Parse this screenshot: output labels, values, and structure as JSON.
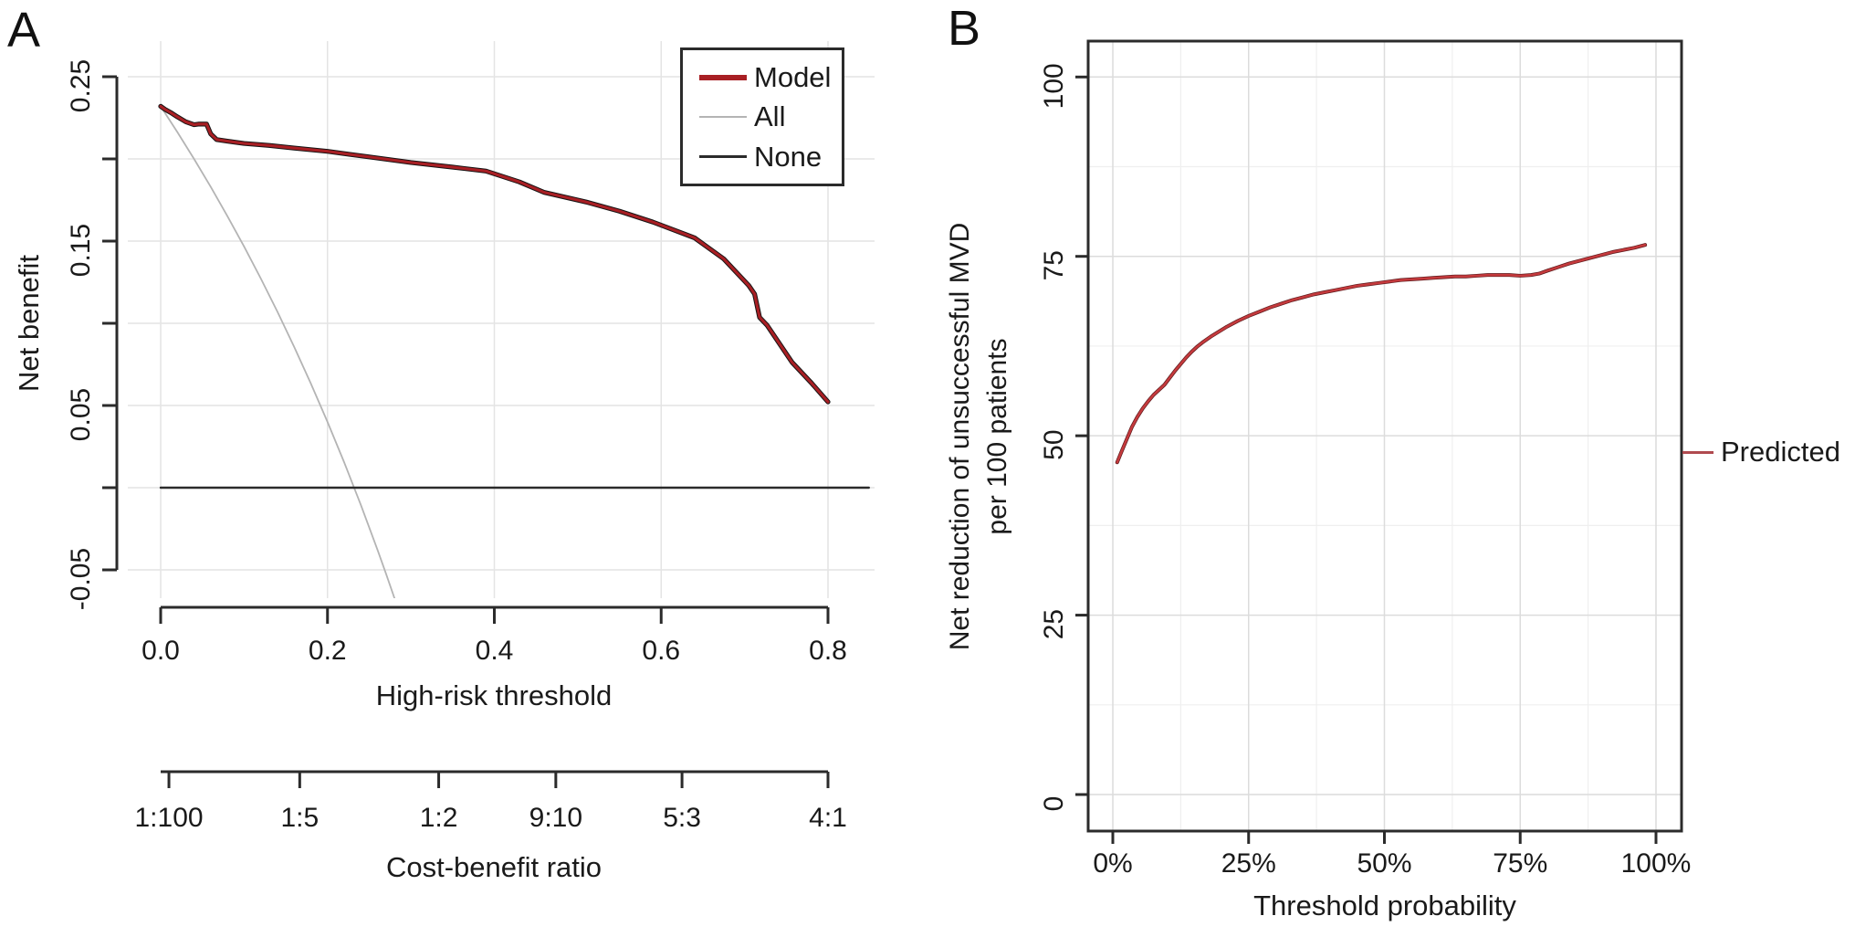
{
  "colors": {
    "model_red": "#a81f24",
    "model_under": "#141414",
    "all_gray": "#b4b4b4",
    "none_black": "#2b2b2b",
    "predicted_red": "#c53a3d",
    "predicted_under": "#5a191b",
    "legend_b_red": "#b04a4f",
    "grid_a": "#e4e4e4",
    "grid_b_major": "#dcdcdc",
    "grid_b_minor": "#efefef",
    "axis": "#2b2b2b",
    "text": "#1a1a1a"
  },
  "chart_data": [
    {
      "type": "line",
      "panel_label": "A",
      "xlabel": "High-risk threshold",
      "ylabel": "Net benefit",
      "xlim": [
        0,
        0.8
      ],
      "ylim": [
        -0.05,
        0.25
      ],
      "grid": "on",
      "legend_position": "top-right",
      "xticks": [
        {
          "v": 0.0,
          "label": "0.0"
        },
        {
          "v": 0.2,
          "label": "0.2"
        },
        {
          "v": 0.4,
          "label": "0.4"
        },
        {
          "v": 0.6,
          "label": "0.6"
        },
        {
          "v": 0.8,
          "label": "0.8"
        }
      ],
      "yticks": [
        {
          "v": 0.25,
          "label": "0.25"
        },
        {
          "v": 0.15,
          "label": "0.15"
        },
        {
          "v": 0.05,
          "label": "0.05"
        },
        {
          "v": -0.05,
          "label": "-0.05"
        }
      ],
      "yticks_minor": [
        0.2,
        0.1,
        0.0
      ],
      "secondary_xaxis": {
        "label": "Cost-benefit ratio",
        "ticks": [
          {
            "pos": 0.0099,
            "label": "1:100"
          },
          {
            "pos": 0.1667,
            "label": "1:5"
          },
          {
            "pos": 0.3333,
            "label": "1:2"
          },
          {
            "pos": 0.4737,
            "label": "9:10"
          },
          {
            "pos": 0.625,
            "label": "5:3"
          },
          {
            "pos": 0.8,
            "label": "4:1"
          }
        ]
      },
      "legend": {
        "entries": [
          {
            "name": "Model",
            "color": "#a81f24"
          },
          {
            "name": "All",
            "color": "#b4b4b4"
          },
          {
            "name": "None",
            "color": "#2b2b2b"
          }
        ]
      },
      "series": [
        {
          "name": "All",
          "color": "#b4b4b4",
          "points": [
            [
              0,
              0.232
            ],
            [
              0.02,
              0.2163
            ],
            [
              0.04,
              0.2
            ],
            [
              0.06,
              0.183
            ],
            [
              0.08,
              0.1652
            ],
            [
              0.1,
              0.1467
            ],
            [
              0.12,
              0.1273
            ],
            [
              0.14,
              0.107
            ],
            [
              0.16,
              0.0857
            ],
            [
              0.18,
              0.0634
            ],
            [
              0.2,
              0.04
            ],
            [
              0.22,
              0.0154
            ],
            [
              0.24,
              -0.0105
            ],
            [
              0.26,
              -0.0379
            ],
            [
              0.27,
              -0.0521
            ],
            [
              0.28,
              -0.0668
            ],
            [
              0.284,
              -0.0728
            ]
          ]
        },
        {
          "name": "None",
          "color": "#2b2b2b",
          "points": [
            [
              0,
              0
            ],
            [
              0.849,
              0
            ]
          ]
        },
        {
          "name": "Model",
          "color": "#a81f24",
          "points": [
            [
              0,
              0.232
            ],
            [
              0.005,
              0.2302
            ],
            [
              0.012,
              0.2282
            ],
            [
              0.02,
              0.2256
            ],
            [
              0.03,
              0.2226
            ],
            [
              0.04,
              0.2208
            ],
            [
              0.046,
              0.2212
            ],
            [
              0.055,
              0.2212
            ],
            [
              0.06,
              0.2152
            ],
            [
              0.067,
              0.2118
            ],
            [
              0.08,
              0.2108
            ],
            [
              0.1,
              0.2094
            ],
            [
              0.13,
              0.2082
            ],
            [
              0.16,
              0.2066
            ],
            [
              0.2,
              0.2046
            ],
            [
              0.25,
              0.2012
            ],
            [
              0.3,
              0.1978
            ],
            [
              0.35,
              0.195
            ],
            [
              0.39,
              0.1926
            ],
            [
              0.43,
              0.186
            ],
            [
              0.46,
              0.1796
            ],
            [
              0.51,
              0.1738
            ],
            [
              0.55,
              0.1682
            ],
            [
              0.59,
              0.1616
            ],
            [
              0.64,
              0.152
            ],
            [
              0.675,
              0.1392
            ],
            [
              0.705,
              0.123
            ],
            [
              0.712,
              0.1178
            ],
            [
              0.718,
              0.1036
            ],
            [
              0.727,
              0.0988
            ],
            [
              0.757,
              0.0762
            ],
            [
              0.78,
              0.0638
            ],
            [
              0.8,
              0.0522
            ]
          ]
        }
      ]
    },
    {
      "type": "line",
      "panel_label": "B",
      "xlabel": "Threshold probability",
      "ylabel": "Net reduction of unsuccessful MVD\nper 100 patients",
      "xlim": [
        0,
        100
      ],
      "ylim": [
        0,
        100
      ],
      "grid": "on",
      "legend_position": "right",
      "xticks": [
        {
          "v": 0,
          "label": "0%"
        },
        {
          "v": 25,
          "label": "25%"
        },
        {
          "v": 50,
          "label": "50%"
        },
        {
          "v": 75,
          "label": "75%"
        },
        {
          "v": 100,
          "label": "100%"
        }
      ],
      "yticks": [
        {
          "v": 0,
          "label": "0"
        },
        {
          "v": 25,
          "label": "25"
        },
        {
          "v": 50,
          "label": "50"
        },
        {
          "v": 75,
          "label": "75"
        },
        {
          "v": 100,
          "label": "100"
        }
      ],
      "xticks_minor": [
        12.5,
        37.5,
        62.5,
        87.5
      ],
      "yticks_minor": [
        12.5,
        37.5,
        62.5,
        87.5
      ],
      "legend": {
        "entries": [
          {
            "name": "Predicted",
            "color": "#b04a4f"
          }
        ]
      },
      "series": [
        {
          "name": "Predicted",
          "color": "#c53a3d",
          "points": [
            [
              0.8,
              46.3
            ],
            [
              1.5,
              47.6
            ],
            [
              2.5,
              49.4
            ],
            [
              3.5,
              51.2
            ],
            [
              4.5,
              52.6
            ],
            [
              5.5,
              53.8
            ],
            [
              6.5,
              54.8
            ],
            [
              7.5,
              55.7
            ],
            [
              8.5,
              56.4
            ],
            [
              9.5,
              57.1
            ],
            [
              10.5,
              58.1
            ],
            [
              11.5,
              59.1
            ],
            [
              12.5,
              60
            ],
            [
              13.5,
              60.9
            ],
            [
              14.5,
              61.7
            ],
            [
              15.5,
              62.4
            ],
            [
              16.5,
              63
            ],
            [
              18,
              63.8
            ],
            [
              19.5,
              64.5
            ],
            [
              21,
              65.2
            ],
            [
              23,
              66
            ],
            [
              25,
              66.7
            ],
            [
              27,
              67.3
            ],
            [
              29,
              67.9
            ],
            [
              31,
              68.4
            ],
            [
              33,
              68.9
            ],
            [
              35,
              69.3
            ],
            [
              37,
              69.7
            ],
            [
              39,
              70
            ],
            [
              41,
              70.3
            ],
            [
              43,
              70.6
            ],
            [
              45,
              70.9
            ],
            [
              47,
              71.1
            ],
            [
              49,
              71.3
            ],
            [
              51,
              71.5
            ],
            [
              53,
              71.7
            ],
            [
              55,
              71.8
            ],
            [
              57,
              71.9
            ],
            [
              59,
              72
            ],
            [
              61,
              72.1
            ],
            [
              63,
              72.2
            ],
            [
              65,
              72.2
            ],
            [
              67,
              72.3
            ],
            [
              69,
              72.4
            ],
            [
              71,
              72.4
            ],
            [
              73,
              72.4
            ],
            [
              75,
              72.3
            ],
            [
              77,
              72.4
            ],
            [
              78.5,
              72.6
            ],
            [
              80,
              73
            ],
            [
              82,
              73.5
            ],
            [
              84,
              74
            ],
            [
              86,
              74.4
            ],
            [
              88,
              74.8
            ],
            [
              90,
              75.2
            ],
            [
              92,
              75.6
            ],
            [
              94,
              75.9
            ],
            [
              96,
              76.2
            ],
            [
              98,
              76.6
            ]
          ]
        }
      ]
    }
  ]
}
